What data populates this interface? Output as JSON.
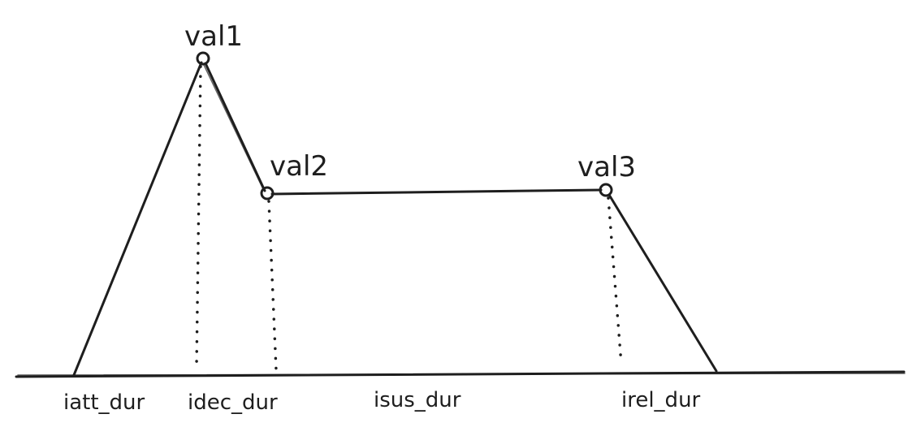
{
  "points": {
    "val1": "val1",
    "val2": "val2",
    "val3": "val3"
  },
  "durations": {
    "attack": "iatt_dur",
    "decay": "idec_dur",
    "sustain": "isus_dur",
    "release": "irel_dur"
  },
  "colors": {
    "ink": "#1e1e1e",
    "background": "#ffffff"
  }
}
